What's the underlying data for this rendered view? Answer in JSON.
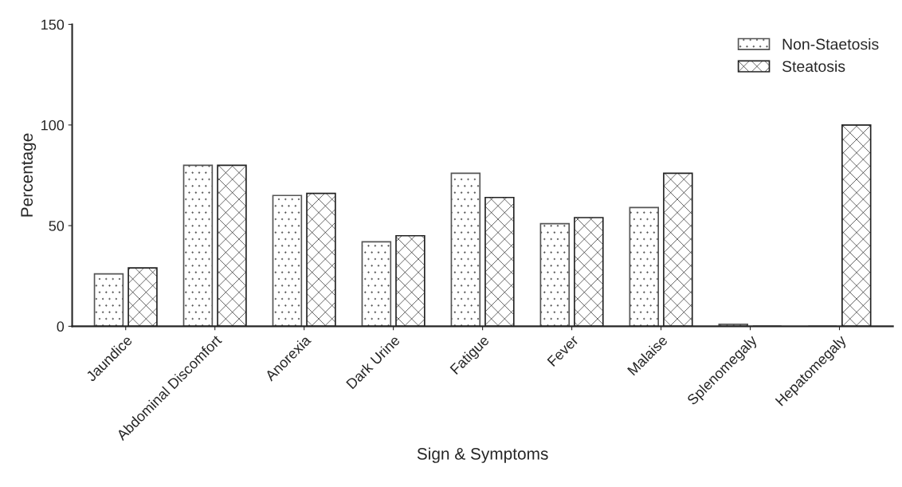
{
  "chart_data": {
    "type": "bar",
    "xlabel": "Sign & Symptoms",
    "ylabel": "Percentage",
    "categories": [
      "Jaundice",
      "Abdominal Discomfort",
      "Anorexia",
      "Dark Urine",
      "Fatigue",
      "Fever",
      "Malaise",
      "Splenomegaly",
      "Hepatomegaly"
    ],
    "series": [
      {
        "name": "Non-Staetosis",
        "color": "#555555",
        "values": [
          26,
          80,
          65,
          42,
          76,
          51,
          59,
          1,
          0
        ]
      },
      {
        "name": "Steatosis",
        "color": "#222222",
        "values": [
          29,
          80,
          66,
          45,
          64,
          54,
          76,
          0,
          100
        ]
      }
    ],
    "ylim": [
      0,
      150
    ],
    "yticks": [
      0,
      50,
      100,
      150
    ],
    "grid": false,
    "legend": "top right"
  }
}
